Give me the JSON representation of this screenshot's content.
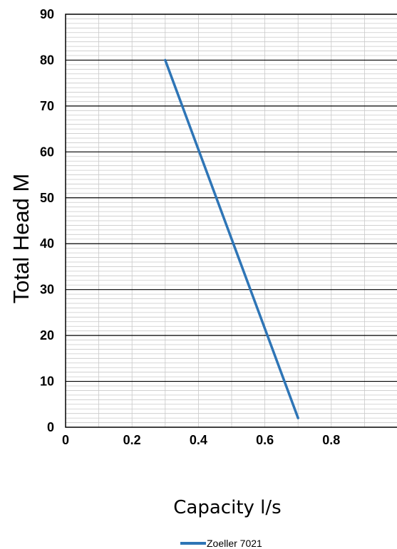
{
  "chart_data": {
    "type": "line",
    "title": "",
    "xlabel": "Capacity l/s",
    "ylabel": "Total Head M",
    "xlim": [
      0,
      1.0
    ],
    "ylim": [
      0,
      90
    ],
    "x_ticks": [
      "0",
      "0.2",
      "0.4",
      "0.6",
      "0.8"
    ],
    "y_ticks": [
      "0",
      "10",
      "20",
      "30",
      "40",
      "50",
      "60",
      "70",
      "80",
      "90"
    ],
    "grid": true,
    "legend_position": "bottom-center",
    "series": [
      {
        "name": "Zoeller 7021",
        "color": "#2e75b6",
        "points": [
          {
            "x": 0.3,
            "y": 80
          },
          {
            "x": 0.7,
            "y": 2
          }
        ]
      }
    ]
  }
}
